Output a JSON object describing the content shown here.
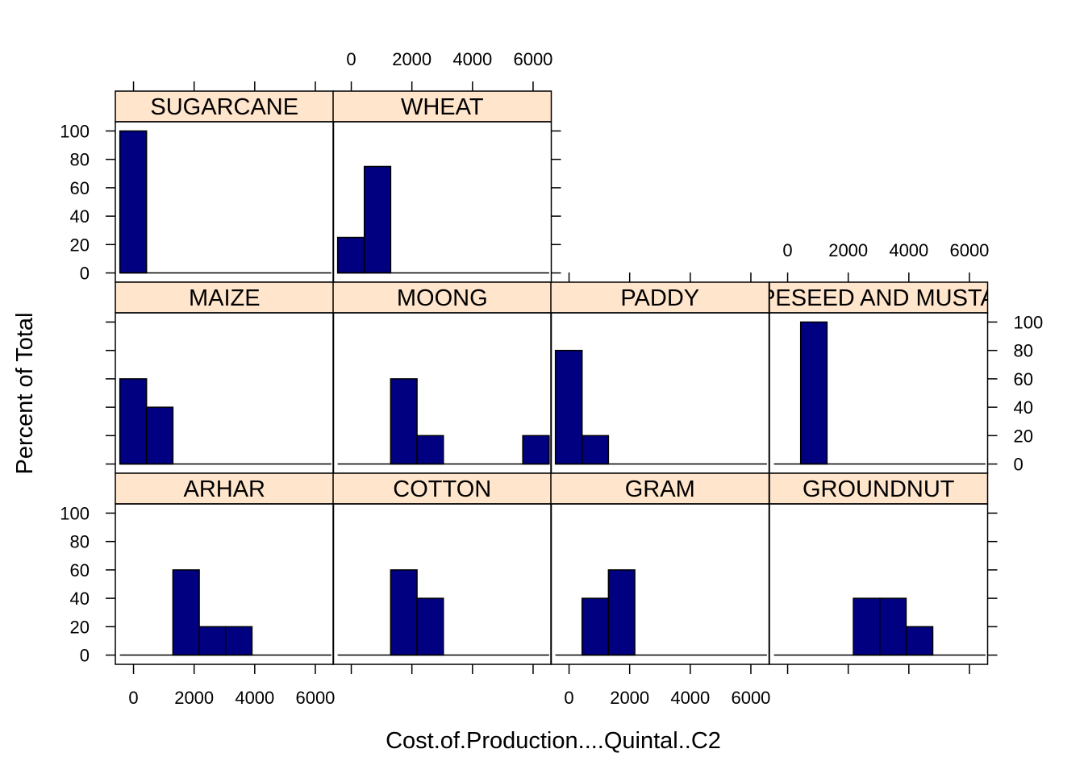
{
  "chart_data": {
    "type": "bar",
    "layout": "trellis-histogram",
    "xlabel": "Cost.of.Production....Quintal..C2",
    "ylabel": "Percent of Total",
    "xlim": [
      -600,
      6600
    ],
    "ylim": [
      -6.5,
      106.5
    ],
    "xticks": [
      0,
      2000,
      4000,
      6000
    ],
    "yticks": [
      0,
      20,
      40,
      60,
      80,
      100
    ],
    "bin_breaks": [
      -450,
      430,
      1300,
      2170,
      3040,
      3910,
      4790,
      5660,
      6530
    ],
    "grid": false,
    "colors": {
      "bar_fill": "#000080",
      "bar_stroke": "#000000",
      "strip_fill": "#FFE5CC",
      "frame": "#000000",
      "background": "#FFFFFF"
    },
    "panels": [
      {
        "name": "SUGARCANE",
        "values": [
          100,
          0,
          0,
          0,
          0,
          0,
          0,
          0
        ]
      },
      {
        "name": "WHEAT",
        "values": [
          25,
          75,
          0,
          0,
          0,
          0,
          0,
          0
        ]
      },
      {
        "name": "MAIZE",
        "values": [
          60,
          40,
          0,
          0,
          0,
          0,
          0,
          0
        ]
      },
      {
        "name": "MOONG",
        "values": [
          0,
          0,
          60,
          20,
          0,
          0,
          0,
          20
        ]
      },
      {
        "name": "PADDY",
        "values": [
          80,
          20,
          0,
          0,
          0,
          0,
          0,
          0
        ]
      },
      {
        "name": "RAPESEED AND MUSTARD",
        "values": [
          0,
          100,
          0,
          0,
          0,
          0,
          0,
          0
        ]
      },
      {
        "name": "ARHAR",
        "values": [
          0,
          0,
          60,
          20,
          20,
          0,
          0,
          0
        ]
      },
      {
        "name": "COTTON",
        "values": [
          0,
          0,
          60,
          40,
          0,
          0,
          0,
          0
        ]
      },
      {
        "name": "GRAM",
        "values": [
          0,
          40,
          60,
          0,
          0,
          0,
          0,
          0
        ]
      },
      {
        "name": "GROUNDNUT",
        "values": [
          0,
          0,
          0,
          40,
          40,
          20,
          0,
          0
        ]
      }
    ]
  }
}
